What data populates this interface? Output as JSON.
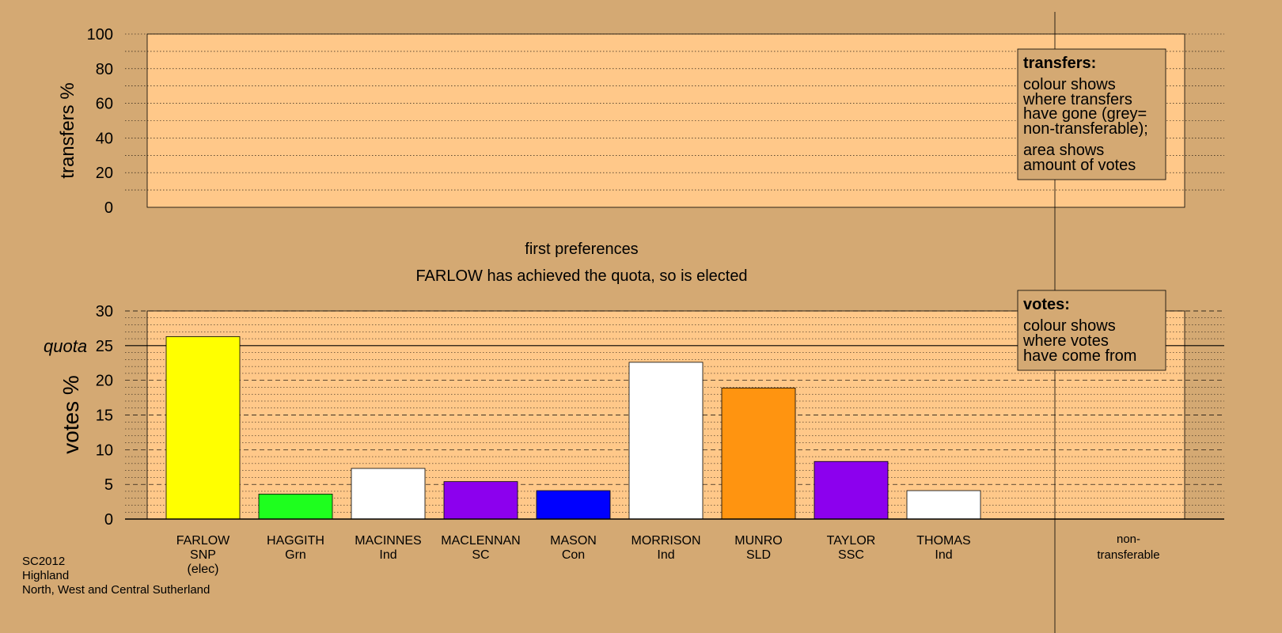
{
  "chart_data": {
    "type": "bar",
    "top_panel": {
      "ylabel": "transfers %",
      "ylim": [
        0,
        100
      ],
      "yticks": [
        "0",
        "20",
        "40",
        "60",
        "80",
        "100"
      ],
      "legend": {
        "title": "transfers:",
        "lines": [
          "colour shows",
          "where transfers",
          "have gone (grey=",
          "non-transferable);",
          "area shows",
          "amount of votes"
        ]
      }
    },
    "stage_title": "first preferences",
    "status_text": "FARLOW has achieved the quota, so is elected",
    "bottom_panel": {
      "ylabel": "votes %",
      "ylim": [
        0,
        30
      ],
      "yticks": [
        "0",
        "5",
        "10",
        "15",
        "20",
        "25",
        "30"
      ],
      "quota": 25,
      "quota_label": "quota",
      "legend": {
        "title": "votes:",
        "lines": [
          "colour shows",
          "where votes",
          "have come from"
        ]
      }
    },
    "candidates": [
      {
        "name": "FARLOW",
        "party": "SNP",
        "note": "(elec)",
        "value": 26.3,
        "color": "#ffff00"
      },
      {
        "name": "HAGGITH",
        "party": "Grn",
        "note": "",
        "value": 3.6,
        "color": "#1eff1e"
      },
      {
        "name": "MACINNES",
        "party": "Ind",
        "note": "",
        "value": 7.3,
        "color": "#ffffff"
      },
      {
        "name": "MACLENNAN",
        "party": "SC",
        "note": "",
        "value": 5.4,
        "color": "#8c00ee"
      },
      {
        "name": "MASON",
        "party": "Con",
        "note": "",
        "value": 4.1,
        "color": "#0000ff"
      },
      {
        "name": "MORRISON",
        "party": "Ind",
        "note": "",
        "value": 22.6,
        "color": "#ffffff"
      },
      {
        "name": "MUNRO",
        "party": "SLD",
        "note": "",
        "value": 18.9,
        "color": "#ff9410"
      },
      {
        "name": "TAYLOR",
        "party": "SSC",
        "note": "",
        "value": 8.3,
        "color": "#8c00ee"
      },
      {
        "name": "THOMAS",
        "party": "Ind",
        "note": "",
        "value": 4.1,
        "color": "#ffffff"
      }
    ],
    "nontransferable": {
      "line1": "non-",
      "line2": "transferable",
      "value": 0
    },
    "footer": [
      "SC2012",
      "Highland",
      "North, West and Central Sutherland"
    ],
    "colors": {
      "background": "#d4a973",
      "plot_area": "#ffc889",
      "legend_box": "#d4a973"
    }
  }
}
